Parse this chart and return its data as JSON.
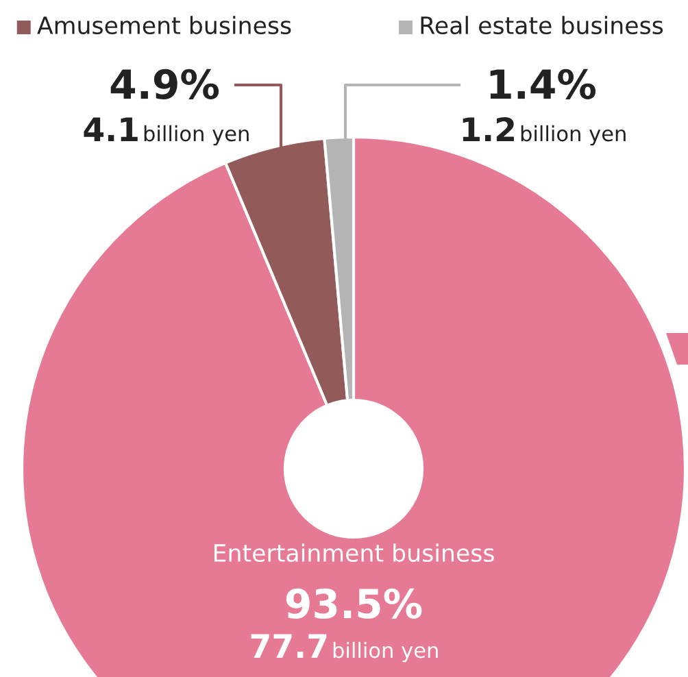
{
  "chart_data": {
    "type": "donut",
    "categories": [
      "Entertainment business",
      "Amusement business",
      "Real estate business"
    ],
    "values": [
      93.5,
      4.9,
      1.4
    ],
    "colors": [
      "#e67a95",
      "#935a5a",
      "#b4b4b4"
    ],
    "value_labels": [
      "93.5%",
      "4.9%",
      "1.4%"
    ],
    "annotations": [
      "77.7 billion yen",
      "4.1 billion yen",
      "1.2 billion yen"
    ],
    "legend": "top"
  }
}
